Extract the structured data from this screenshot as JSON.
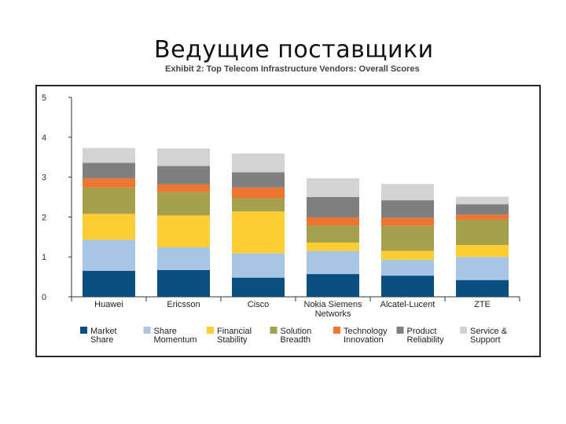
{
  "slide": {
    "title": "Ведущие поставщики"
  },
  "chart_data": {
    "type": "bar",
    "stacked": true,
    "title": "Exhibit 2: Top Telecom Infrastructure Vendors: Overall Scores",
    "xlabel": "",
    "ylabel": "",
    "ylim": [
      0,
      5
    ],
    "yticks": [
      "0",
      "1",
      "2",
      "3",
      "4",
      "5"
    ],
    "categories": [
      [
        "Huawei"
      ],
      [
        "Ericsson"
      ],
      [
        "Cisco"
      ],
      [
        "Nokia Siemens",
        "Networks"
      ],
      [
        "Alcatel-Lucent"
      ],
      [
        "ZTE"
      ]
    ],
    "series": [
      {
        "name": [
          "Market",
          "Share"
        ],
        "color": "#0b4f80",
        "values": [
          0.65,
          0.67,
          0.48,
          0.57,
          0.53,
          0.42
        ]
      },
      {
        "name": [
          "Share",
          "Momentum"
        ],
        "color": "#a7c5e4",
        "values": [
          0.78,
          0.57,
          0.61,
          0.58,
          0.4,
          0.58
        ]
      },
      {
        "name": [
          "Financial",
          "Stability"
        ],
        "color": "#fcce32",
        "values": [
          0.65,
          0.8,
          1.05,
          0.21,
          0.22,
          0.3
        ]
      },
      {
        "name": [
          "Solution",
          "Breadth"
        ],
        "color": "#a5a04c",
        "values": [
          0.66,
          0.59,
          0.33,
          0.43,
          0.63,
          0.63
        ]
      },
      {
        "name": [
          "Technology",
          "Innovation"
        ],
        "color": "#ec7530",
        "values": [
          0.23,
          0.19,
          0.27,
          0.2,
          0.2,
          0.13
        ]
      },
      {
        "name": [
          "Product",
          "Reliability"
        ],
        "color": "#7f7f7f",
        "values": [
          0.39,
          0.46,
          0.38,
          0.51,
          0.44,
          0.26
        ]
      },
      {
        "name": [
          "Service &",
          "Support"
        ],
        "color": "#d3d3d3",
        "values": [
          0.37,
          0.44,
          0.47,
          0.47,
          0.41,
          0.19
        ]
      }
    ]
  }
}
